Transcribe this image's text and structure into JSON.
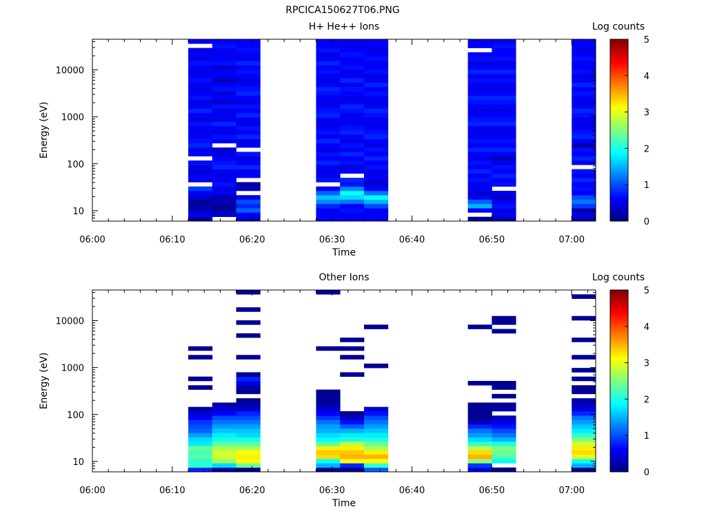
{
  "figure": {
    "title": "RPCICA150627T06.PNG"
  },
  "colormap": [
    "#00007f",
    "#0000ff",
    "#007fff",
    "#00ffff",
    "#7fff7f",
    "#ffff00",
    "#ff7f00",
    "#ff0000",
    "#7f0000"
  ],
  "chart_data": [
    {
      "type": "heatmap",
      "title": "H+ He++ Ions",
      "xlabel": "Time",
      "ylabel": "Energy (eV)",
      "x_ticks": [
        "06:00",
        "06:10",
        "06:20",
        "06:30",
        "06:40",
        "06:50",
        "07:00"
      ],
      "xlim": [
        "06:00",
        "07:03"
      ],
      "y_scale": "log",
      "y_ticks": [
        "10",
        "100",
        "1000",
        "10000"
      ],
      "ylim": [
        6,
        45000
      ],
      "colorbar": {
        "label": "Log counts",
        "ticks": [
          "0",
          "1",
          "2",
          "3",
          "4",
          "5"
        ],
        "range": [
          0,
          5
        ]
      },
      "time_columns": [
        {
          "start": "06:12",
          "end": "06:15",
          "levels": [
            0.1,
            0.6,
            0.3,
            0.2,
            0.1,
            0.4,
            0.6,
            0.9,
            null,
            0.5,
            0.6,
            0.4,
            0.5,
            0.7,
            null,
            0.6,
            0.5,
            0.8,
            0.7,
            0.6,
            0.5,
            0.6,
            0.7,
            0.5,
            0.6,
            0.8,
            0.6,
            0.5,
            0.7,
            0.6,
            0.5,
            0.6,
            0.7,
            0.6,
            0.5,
            0.6,
            0.7,
            0.5,
            0.6,
            0.5,
            null,
            0.6
          ]
        },
        {
          "start": "06:15",
          "end": "06:18",
          "levels": [
            null,
            0.4,
            0.2,
            0.1,
            0.3,
            0.2,
            0.6,
            0.5,
            0.7,
            0.6,
            0.5,
            0.6,
            0.8,
            0.7,
            0.6,
            0.5,
            0.4,
            null,
            0.6,
            0.7,
            0.5,
            0.6,
            0.8,
            0.5,
            0.6,
            0.5,
            0.7,
            0.4,
            0.6,
            0.5,
            0.7,
            0.6,
            0.3,
            0.5,
            0.6,
            0.4,
            0.7,
            0.6,
            0.5,
            0.6,
            0.7,
            0.6
          ]
        },
        {
          "start": "06:18",
          "end": "06:21",
          "levels": [
            0.4,
            0.6,
            1.1,
            0.8,
            1.0,
            0.5,
            null,
            0.3,
            0.2,
            null,
            0.6,
            0.5,
            0.8,
            0.6,
            0.5,
            0.7,
            null,
            0.6,
            0.5,
            0.8,
            0.6,
            0.7,
            0.5,
            0.6,
            0.8,
            0.6,
            0.7,
            0.5,
            0.6,
            0.8,
            0.7,
            0.6,
            0.5,
            0.6,
            0.7,
            0.6,
            0.8,
            0.5,
            0.6,
            0.7,
            0.6,
            0.6
          ]
        },
        {
          "start": "06:28",
          "end": "06:31",
          "levels": [
            0.6,
            0.6,
            0.6,
            0.8,
            1.3,
            1.6,
            1.1,
            0.6,
            null,
            0.7,
            0.6,
            0.5,
            0.6,
            0.8,
            0.6,
            0.7,
            0.5,
            0.6,
            0.8,
            0.6,
            0.7,
            0.6,
            0.5,
            0.6,
            0.8,
            0.7,
            0.6,
            0.5,
            0.6,
            0.7,
            0.8,
            0.6,
            0.5,
            0.6,
            0.7,
            0.6,
            0.8,
            0.6,
            0.5,
            0.7,
            0.6,
            0.6
          ]
        },
        {
          "start": "06:31",
          "end": "06:34",
          "levels": [
            0.6,
            0.6,
            0.7,
            0.6,
            1.2,
            1.7,
            1.9,
            1.3,
            0.7,
            0.8,
            null,
            0.6,
            0.5,
            0.7,
            0.6,
            0.8,
            0.6,
            0.7,
            0.5,
            0.6,
            0.8,
            0.7,
            0.6,
            0.5,
            0.6,
            0.7,
            0.8,
            0.6,
            0.5,
            0.6,
            0.7,
            0.6,
            0.8,
            0.6,
            0.5,
            0.7,
            0.6,
            0.6,
            0.7,
            0.6,
            0.5,
            0.6
          ]
        },
        {
          "start": "06:34",
          "end": "06:37",
          "levels": [
            0.6,
            0.6,
            0.6,
            1.0,
            1.5,
            1.9,
            1.2,
            0.6,
            0.4,
            0.5,
            0.6,
            0.5,
            0.7,
            0.6,
            0.8,
            0.6,
            0.7,
            0.5,
            0.6,
            0.8,
            0.7,
            0.6,
            0.5,
            0.6,
            0.7,
            0.8,
            0.6,
            0.5,
            0.6,
            0.7,
            0.6,
            0.8,
            0.6,
            0.5,
            0.7,
            0.6,
            0.6,
            0.7,
            0.6,
            0.5,
            0.6,
            0.6
          ]
        },
        {
          "start": "06:47",
          "end": "06:50",
          "levels": [
            0.1,
            null,
            0.6,
            1.5,
            1.1,
            0.6,
            0.4,
            0.6,
            0.5,
            0.7,
            0.6,
            0.8,
            0.6,
            0.7,
            0.5,
            0.6,
            0.8,
            0.6,
            0.7,
            0.6,
            0.5,
            0.6,
            0.8,
            0.7,
            0.6,
            0.5,
            0.6,
            0.7,
            0.8,
            0.6,
            0.5,
            0.6,
            0.7,
            0.6,
            0.8,
            0.6,
            0.5,
            0.7,
            0.6,
            null,
            0.6,
            0.6
          ]
        },
        {
          "start": "06:50",
          "end": "06:53",
          "levels": [
            0.2,
            0.6,
            0.5,
            0.7,
            0.6,
            0.3,
            0.6,
            null,
            0.7,
            0.6,
            0.8,
            0.6,
            0.7,
            0.5,
            0.3,
            0.6,
            0.8,
            0.6,
            0.7,
            0.6,
            0.5,
            0.6,
            0.8,
            0.7,
            0.6,
            0.5,
            0.6,
            0.7,
            0.8,
            0.6,
            0.5,
            0.6,
            0.7,
            0.6,
            0.8,
            0.6,
            0.5,
            0.7,
            0.6,
            0.6,
            0.7,
            0.6
          ]
        },
        {
          "start": "07:00",
          "end": "07:03",
          "levels": [
            0.3,
            0.5,
            0.2,
            0.9,
            1.2,
            1.0,
            0.6,
            0.7,
            0.6,
            0.8,
            0.6,
            0.7,
            null,
            0.6,
            0.8,
            0.6,
            0.7,
            0.2,
            0.6,
            0.8,
            0.7,
            0.6,
            0.5,
            0.6,
            0.7,
            0.8,
            0.6,
            0.5,
            0.6,
            0.7,
            0.6,
            0.8,
            0.6,
            0.5,
            0.7,
            0.6,
            0.6,
            0.7,
            0.6,
            0.5,
            0.6,
            0.6
          ]
        }
      ]
    },
    {
      "type": "heatmap",
      "title": "Other Ions",
      "xlabel": "Time",
      "ylabel": "Energy (eV)",
      "x_ticks": [
        "06:00",
        "06:10",
        "06:20",
        "06:30",
        "06:40",
        "06:50",
        "07:00"
      ],
      "xlim": [
        "06:00",
        "07:03"
      ],
      "y_scale": "log",
      "y_ticks": [
        "10",
        "100",
        "1000",
        "10000"
      ],
      "ylim": [
        6,
        45000
      ],
      "colorbar": {
        "label": "Log counts",
        "ticks": [
          "0",
          "1",
          "2",
          "3",
          "4",
          "5"
        ],
        "range": [
          0,
          5
        ]
      },
      "time_columns": [
        {
          "start": "06:12",
          "end": "06:15",
          "levels": [
            0.8,
            2.1,
            2.1,
            2.3,
            2.2,
            2.4,
            1.8,
            1.7,
            1.4,
            1.1,
            1.0,
            0.9,
            0.6,
            0.4,
            0.2,
            null,
            null,
            null,
            null,
            0.1,
            null,
            0.1,
            null,
            null,
            null,
            null,
            0.1,
            null,
            0.1,
            null,
            null,
            null,
            null,
            null,
            null,
            null,
            null,
            null,
            null,
            null,
            null,
            null
          ]
        },
        {
          "start": "06:15",
          "end": "06:18",
          "levels": [
            0.2,
            1.7,
            2.6,
            2.9,
            2.9,
            2.7,
            2.3,
            2.0,
            1.8,
            1.6,
            1.4,
            1.2,
            1.0,
            0.6,
            0.4,
            0.2,
            null,
            null,
            null,
            null,
            null,
            null,
            null,
            null,
            null,
            null,
            null,
            null,
            null,
            null,
            null,
            null,
            null,
            null,
            null,
            null,
            null,
            null,
            null,
            null,
            null,
            null
          ]
        },
        {
          "start": "06:18",
          "end": "06:21",
          "levels": [
            0.1,
            2.4,
            3.1,
            3.2,
            3.1,
            2.7,
            2.3,
            2.0,
            1.7,
            1.6,
            1.4,
            1.2,
            1.0,
            0.8,
            0.4,
            0.2,
            0.1,
            null,
            0.1,
            0.2,
            0.5,
            0.8,
            0.1,
            null,
            null,
            null,
            0.1,
            null,
            null,
            null,
            null,
            0.1,
            null,
            null,
            0.1,
            null,
            null,
            0.1,
            null,
            null,
            null,
            0.1
          ]
        },
        {
          "start": "06:28",
          "end": "06:31",
          "levels": [
            0.1,
            1.5,
            1.9,
            3.3,
            3.4,
            3.2,
            2.3,
            1.9,
            1.7,
            1.5,
            1.4,
            1.2,
            0.9,
            0.6,
            0.4,
            0.2,
            0.1,
            0.1,
            0.1,
            null,
            null,
            null,
            null,
            null,
            null,
            null,
            null,
            null,
            0.1,
            null,
            null,
            null,
            null,
            null,
            null,
            null,
            null,
            null,
            null,
            null,
            null,
            0.1
          ]
        },
        {
          "start": "06:31",
          "end": "06:34",
          "levels": [
            0.1,
            0.8,
            3.1,
            3.5,
            3.4,
            3.2,
            2.8,
            2.0,
            1.8,
            1.5,
            1.1,
            0.7,
            0.3,
            0.1,
            null,
            null,
            null,
            null,
            null,
            null,
            null,
            null,
            0.1,
            null,
            null,
            null,
            0.1,
            null,
            0.1,
            null,
            0.1,
            null,
            null,
            null,
            null,
            null,
            null,
            null,
            null,
            null,
            null,
            null
          ]
        },
        {
          "start": "06:34",
          "end": "06:37",
          "levels": [
            1.1,
            2.1,
            3.1,
            3.5,
            3.2,
            2.7,
            2.4,
            2.0,
            1.8,
            1.6,
            1.4,
            1.2,
            1.0,
            0.7,
            0.4,
            null,
            null,
            null,
            null,
            null,
            null,
            null,
            null,
            null,
            0.1,
            null,
            null,
            null,
            null,
            null,
            null,
            null,
            null,
            0.1,
            null,
            null,
            null,
            null,
            null,
            null,
            null,
            null
          ]
        },
        {
          "start": "06:47",
          "end": "06:50",
          "levels": [
            0.5,
            0.9,
            2.6,
            3.5,
            3.3,
            2.8,
            2.1,
            1.7,
            1.4,
            1.2,
            0.8,
            0.3,
            0.1,
            0.1,
            0.1,
            0.1,
            null,
            null,
            null,
            null,
            0.1,
            null,
            null,
            null,
            null,
            null,
            null,
            null,
            null,
            null,
            null,
            null,
            null,
            0.1,
            null,
            null,
            null,
            null,
            null,
            null,
            null,
            null
          ]
        },
        {
          "start": "06:50",
          "end": "06:53",
          "levels": [
            0.1,
            null,
            1.9,
            2.3,
            2.4,
            2.5,
            2.0,
            1.5,
            1.2,
            1.0,
            0.7,
            0.5,
            0.3,
            null,
            0.2,
            0.1,
            null,
            0.1,
            null,
            0.1,
            0.1,
            null,
            null,
            null,
            null,
            null,
            null,
            null,
            null,
            null,
            null,
            null,
            0.1,
            null,
            0.1,
            0.1,
            null,
            null,
            null,
            null,
            null,
            null
          ]
        },
        {
          "start": "07:00",
          "end": "07:03",
          "levels": [
            0.1,
            1.5,
            1.9,
            3.0,
            3.3,
            3.2,
            2.9,
            2.5,
            2.1,
            1.8,
            1.6,
            1.4,
            1.2,
            0.8,
            0.5,
            0.3,
            0.2,
            null,
            0.1,
            0.1,
            null,
            0.1,
            null,
            0.1,
            null,
            null,
            0.1,
            null,
            null,
            null,
            0.1,
            null,
            null,
            null,
            null,
            0.1,
            null,
            null,
            null,
            null,
            0.1,
            null
          ]
        }
      ]
    }
  ]
}
